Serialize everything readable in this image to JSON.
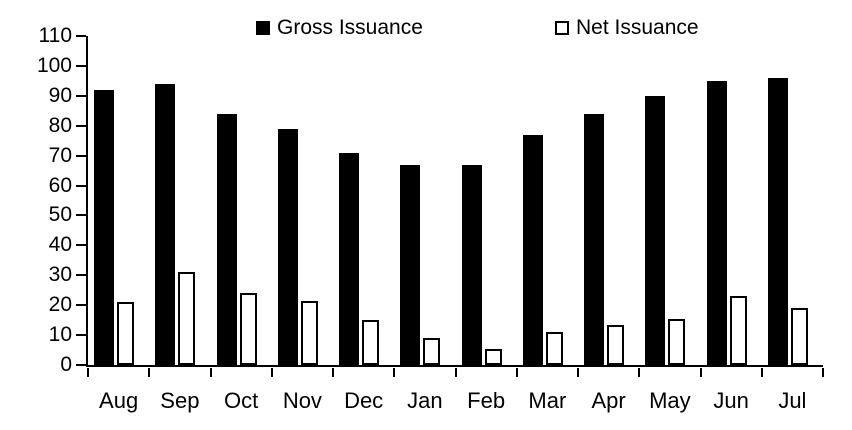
{
  "chart_data": {
    "type": "bar",
    "title": "",
    "xlabel": "",
    "ylabel": "",
    "categories": [
      "Aug",
      "Sep",
      "Oct",
      "Nov",
      "Dec",
      "Jan",
      "Feb",
      "Mar",
      "Apr",
      "May",
      "Jun",
      "Jul"
    ],
    "series": [
      {
        "name": "Gross Issuance",
        "style": "filled",
        "fill": "#000000",
        "values": [
          92,
          94,
          84,
          79,
          71,
          67,
          67,
          77,
          84,
          90,
          95,
          96
        ]
      },
      {
        "name": "Net Issuance",
        "style": "outlined",
        "fill": "#ffffff",
        "stroke": "#000000",
        "values": [
          21,
          31,
          24,
          21.5,
          15,
          9,
          5.5,
          11,
          13.5,
          15.5,
          23,
          19
        ]
      }
    ],
    "ylim": [
      0,
      110
    ],
    "ytick_step": 10,
    "ytick_labels": [
      "0",
      "10",
      "20",
      "30",
      "40",
      "50",
      "60",
      "70",
      "80",
      "90",
      "100",
      "110"
    ],
    "grid": false,
    "legend_position": "top",
    "colors": {
      "axis": "#000000",
      "text": "#000000",
      "background": "#ffffff"
    }
  }
}
